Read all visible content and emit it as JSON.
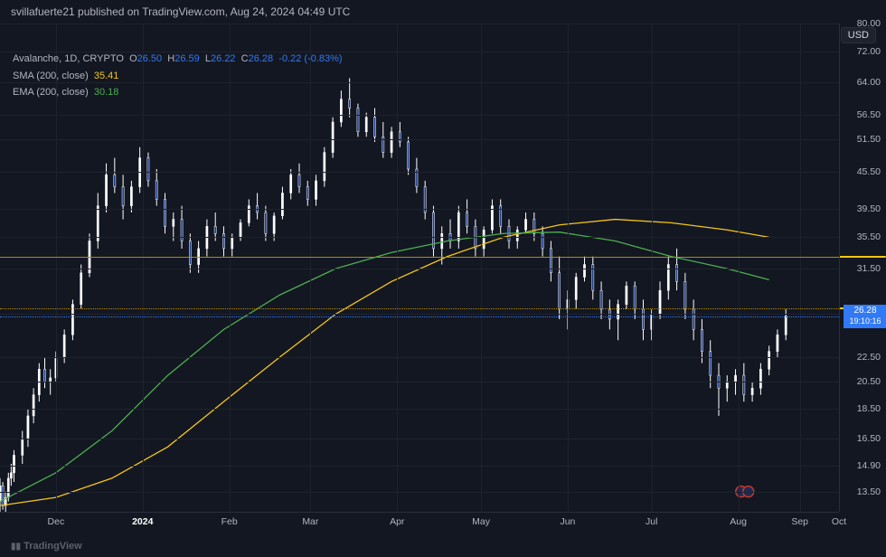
{
  "header": {
    "attribution": "svillafuerte21 published on TradingView.com, Aug 24, 2024 04:49 UTC"
  },
  "info": {
    "symbol": "Avalanche",
    "timeframe": "1D",
    "exchange": "CRYPTO",
    "o_label": "O",
    "o": "26.50",
    "h_label": "H",
    "h": "26.59",
    "l_label": "L",
    "l": "26.22",
    "c_label": "C",
    "c": "26.28",
    "change": "-0.22 (-0.83%)",
    "sma_label": "SMA (200, close)",
    "sma": "35.41",
    "ema_label": "EMA (200, close)",
    "ema": "30.18"
  },
  "currency_badge": "USD",
  "chart": {
    "type": "candlestick",
    "background_color": "#131722",
    "grid_color": "#1e222d",
    "y_scale": "log",
    "ylim": [
      12.5,
      80
    ],
    "yticks": [
      {
        "v": 80,
        "l": "80.00"
      },
      {
        "v": 72,
        "l": "72.00"
      },
      {
        "v": 64,
        "l": "64.00"
      },
      {
        "v": 56.5,
        "l": "56.50"
      },
      {
        "v": 51.5,
        "l": "51.50"
      },
      {
        "v": 45.5,
        "l": "45.50"
      },
      {
        "v": 39.5,
        "l": "39.50"
      },
      {
        "v": 35.5,
        "l": "35.50"
      },
      {
        "v": 31.5,
        "l": "31.50"
      },
      {
        "v": 26.5,
        "l": "26.50"
      },
      {
        "v": 22.5,
        "l": "22.50"
      },
      {
        "v": 20.5,
        "l": "20.50"
      },
      {
        "v": 18.5,
        "l": "18.50"
      },
      {
        "v": 16.5,
        "l": "16.50"
      },
      {
        "v": 14.9,
        "l": "14.90"
      },
      {
        "v": 13.5,
        "l": "13.50"
      }
    ],
    "xlim": [
      0,
      300
    ],
    "xticks": [
      {
        "i": 20,
        "l": "Dec",
        "bold": false
      },
      {
        "i": 51,
        "l": "2024",
        "bold": true
      },
      {
        "i": 82,
        "l": "Feb",
        "bold": false
      },
      {
        "i": 111,
        "l": "Mar",
        "bold": false
      },
      {
        "i": 142,
        "l": "Apr",
        "bold": false
      },
      {
        "i": 172,
        "l": "May",
        "bold": false
      },
      {
        "i": 203,
        "l": "Jun",
        "bold": false
      },
      {
        "i": 233,
        "l": "Jul",
        "bold": false
      },
      {
        "i": 264,
        "l": "Aug",
        "bold": false
      },
      {
        "i": 286,
        "l": "Sep",
        "bold": false
      },
      {
        "i": 300,
        "l": "Oct",
        "bold": false
      }
    ],
    "hlines": [
      {
        "v": 33.01,
        "label": "33.01",
        "style": "solid",
        "color": "#b58b00"
      },
      {
        "v": 27.1,
        "label": "27.10",
        "style": "dotted",
        "color": "#b58b00"
      }
    ],
    "current_price": {
      "v": 26.28,
      "label": "26.28",
      "sublabel": "19:10:16",
      "color": "#3179f5"
    },
    "sma_tag": {
      "v": 35.41,
      "label": "35.41",
      "color": "#f5c518"
    },
    "ema_tag": {
      "v": 30.18,
      "label": "30.18",
      "color": "#4caf50"
    },
    "candle_color": "#ffffff",
    "body_color": "#1c3d8c",
    "sma_color": "#f5c518",
    "ema_color": "#4caf50",
    "sma_points": [
      {
        "i": 0,
        "v": 12.8
      },
      {
        "i": 20,
        "v": 13.2
      },
      {
        "i": 40,
        "v": 14.2
      },
      {
        "i": 60,
        "v": 16.0
      },
      {
        "i": 80,
        "v": 19.0
      },
      {
        "i": 100,
        "v": 22.5
      },
      {
        "i": 120,
        "v": 26.5
      },
      {
        "i": 140,
        "v": 30.0
      },
      {
        "i": 160,
        "v": 33.0
      },
      {
        "i": 180,
        "v": 35.5
      },
      {
        "i": 200,
        "v": 37.2
      },
      {
        "i": 220,
        "v": 38.0
      },
      {
        "i": 240,
        "v": 37.5
      },
      {
        "i": 260,
        "v": 36.5
      },
      {
        "i": 275,
        "v": 35.5
      }
    ],
    "ema_points": [
      {
        "i": 0,
        "v": 13.0
      },
      {
        "i": 20,
        "v": 14.5
      },
      {
        "i": 40,
        "v": 17.0
      },
      {
        "i": 60,
        "v": 21.0
      },
      {
        "i": 80,
        "v": 25.0
      },
      {
        "i": 100,
        "v": 28.5
      },
      {
        "i": 120,
        "v": 31.5
      },
      {
        "i": 140,
        "v": 33.5
      },
      {
        "i": 160,
        "v": 35.0
      },
      {
        "i": 180,
        "v": 36.0
      },
      {
        "i": 200,
        "v": 36.2
      },
      {
        "i": 220,
        "v": 35.0
      },
      {
        "i": 240,
        "v": 33.0
      },
      {
        "i": 260,
        "v": 31.5
      },
      {
        "i": 275,
        "v": 30.2
      }
    ],
    "candles": [
      {
        "i": 0,
        "o": 13.0,
        "h": 14.2,
        "l": 12.5,
        "c": 13.8
      },
      {
        "i": 1,
        "o": 13.8,
        "h": 14.0,
        "l": 12.6,
        "c": 12.8
      },
      {
        "i": 2,
        "o": 12.8,
        "h": 13.5,
        "l": 12.5,
        "c": 13.2
      },
      {
        "i": 3,
        "o": 13.2,
        "h": 14.5,
        "l": 13.0,
        "c": 14.2
      },
      {
        "i": 4,
        "o": 14.2,
        "h": 15.0,
        "l": 13.8,
        "c": 14.5
      },
      {
        "i": 5,
        "o": 14.5,
        "h": 15.8,
        "l": 14.0,
        "c": 15.5
      },
      {
        "i": 8,
        "o": 15.5,
        "h": 17.0,
        "l": 15.0,
        "c": 16.5
      },
      {
        "i": 10,
        "o": 16.5,
        "h": 18.5,
        "l": 16.0,
        "c": 18.0
      },
      {
        "i": 12,
        "o": 18.0,
        "h": 20.0,
        "l": 17.5,
        "c": 19.5
      },
      {
        "i": 14,
        "o": 19.5,
        "h": 22.0,
        "l": 19.0,
        "c": 21.5
      },
      {
        "i": 16,
        "o": 21.5,
        "h": 22.5,
        "l": 20.0,
        "c": 20.5
      },
      {
        "i": 18,
        "o": 20.5,
        "h": 21.5,
        "l": 19.5,
        "c": 20.8
      },
      {
        "i": 20,
        "o": 20.8,
        "h": 23.0,
        "l": 20.5,
        "c": 22.5
      },
      {
        "i": 23,
        "o": 22.5,
        "h": 25.0,
        "l": 22.0,
        "c": 24.5
      },
      {
        "i": 26,
        "o": 24.5,
        "h": 28.0,
        "l": 24.0,
        "c": 27.5
      },
      {
        "i": 29,
        "o": 27.5,
        "h": 32.0,
        "l": 27.0,
        "c": 31.0
      },
      {
        "i": 32,
        "o": 31.0,
        "h": 36.0,
        "l": 30.5,
        "c": 35.0
      },
      {
        "i": 35,
        "o": 35.0,
        "h": 42.0,
        "l": 34.0,
        "c": 40.0
      },
      {
        "i": 38,
        "o": 40.0,
        "h": 47.0,
        "l": 39.0,
        "c": 45.0
      },
      {
        "i": 41,
        "o": 45.0,
        "h": 48.0,
        "l": 42.0,
        "c": 43.0
      },
      {
        "i": 44,
        "o": 43.0,
        "h": 45.0,
        "l": 38.0,
        "c": 40.0
      },
      {
        "i": 47,
        "o": 40.0,
        "h": 44.0,
        "l": 39.0,
        "c": 43.0
      },
      {
        "i": 50,
        "o": 43.0,
        "h": 50.0,
        "l": 42.0,
        "c": 48.0
      },
      {
        "i": 53,
        "o": 48.0,
        "h": 49.0,
        "l": 43.0,
        "c": 44.0
      },
      {
        "i": 56,
        "o": 44.0,
        "h": 46.0,
        "l": 40.0,
        "c": 41.0
      },
      {
        "i": 59,
        "o": 41.0,
        "h": 42.0,
        "l": 36.0,
        "c": 37.0
      },
      {
        "i": 62,
        "o": 37.0,
        "h": 39.0,
        "l": 35.0,
        "c": 38.0
      },
      {
        "i": 65,
        "o": 38.0,
        "h": 40.0,
        "l": 34.0,
        "c": 35.0
      },
      {
        "i": 68,
        "o": 35.0,
        "h": 36.0,
        "l": 31.0,
        "c": 32.0
      },
      {
        "i": 71,
        "o": 32.0,
        "h": 35.0,
        "l": 31.0,
        "c": 34.0
      },
      {
        "i": 74,
        "o": 34.0,
        "h": 38.0,
        "l": 33.0,
        "c": 37.0
      },
      {
        "i": 77,
        "o": 37.0,
        "h": 39.0,
        "l": 35.0,
        "c": 36.0
      },
      {
        "i": 80,
        "o": 36.0,
        "h": 37.0,
        "l": 33.0,
        "c": 34.0
      },
      {
        "i": 83,
        "o": 34.0,
        "h": 36.0,
        "l": 33.0,
        "c": 35.5
      },
      {
        "i": 86,
        "o": 35.5,
        "h": 38.0,
        "l": 35.0,
        "c": 37.5
      },
      {
        "i": 89,
        "o": 37.5,
        "h": 41.0,
        "l": 37.0,
        "c": 40.0
      },
      {
        "i": 92,
        "o": 40.0,
        "h": 42.0,
        "l": 38.0,
        "c": 39.0
      },
      {
        "i": 95,
        "o": 39.0,
        "h": 40.0,
        "l": 35.0,
        "c": 36.0
      },
      {
        "i": 98,
        "o": 36.0,
        "h": 39.0,
        "l": 35.0,
        "c": 38.5
      },
      {
        "i": 101,
        "o": 38.5,
        "h": 43.0,
        "l": 38.0,
        "c": 42.0
      },
      {
        "i": 104,
        "o": 42.0,
        "h": 46.0,
        "l": 41.0,
        "c": 45.0
      },
      {
        "i": 107,
        "o": 45.0,
        "h": 47.0,
        "l": 42.0,
        "c": 43.0
      },
      {
        "i": 110,
        "o": 43.0,
        "h": 44.0,
        "l": 40.0,
        "c": 41.0
      },
      {
        "i": 113,
        "o": 41.0,
        "h": 45.0,
        "l": 40.0,
        "c": 44.0
      },
      {
        "i": 116,
        "o": 44.0,
        "h": 50.0,
        "l": 43.0,
        "c": 49.0
      },
      {
        "i": 119,
        "o": 49.0,
        "h": 56.0,
        "l": 48.0,
        "c": 55.0
      },
      {
        "i": 122,
        "o": 55.0,
        "h": 62.0,
        "l": 54.0,
        "c": 60.0
      },
      {
        "i": 125,
        "o": 60.0,
        "h": 65.0,
        "l": 56.0,
        "c": 58.0
      },
      {
        "i": 128,
        "o": 58.0,
        "h": 59.0,
        "l": 52.0,
        "c": 53.0
      },
      {
        "i": 131,
        "o": 53.0,
        "h": 57.0,
        "l": 52.0,
        "c": 56.0
      },
      {
        "i": 134,
        "o": 56.0,
        "h": 58.0,
        "l": 51.0,
        "c": 52.0
      },
      {
        "i": 137,
        "o": 52.0,
        "h": 55.0,
        "l": 48.0,
        "c": 49.0
      },
      {
        "i": 140,
        "o": 49.0,
        "h": 54.0,
        "l": 48.0,
        "c": 53.0
      },
      {
        "i": 143,
        "o": 53.0,
        "h": 55.0,
        "l": 50.0,
        "c": 51.0
      },
      {
        "i": 146,
        "o": 51.0,
        "h": 52.0,
        "l": 45.0,
        "c": 46.0
      },
      {
        "i": 149,
        "o": 46.0,
        "h": 48.0,
        "l": 42.0,
        "c": 43.0
      },
      {
        "i": 152,
        "o": 43.0,
        "h": 44.0,
        "l": 38.0,
        "c": 39.0
      },
      {
        "i": 155,
        "o": 39.0,
        "h": 40.0,
        "l": 33.0,
        "c": 34.0
      },
      {
        "i": 158,
        "o": 34.0,
        "h": 37.0,
        "l": 32.0,
        "c": 36.0
      },
      {
        "i": 161,
        "o": 36.0,
        "h": 38.0,
        "l": 34.0,
        "c": 35.0
      },
      {
        "i": 164,
        "o": 35.0,
        "h": 40.0,
        "l": 34.0,
        "c": 39.0
      },
      {
        "i": 167,
        "o": 39.0,
        "h": 41.0,
        "l": 36.0,
        "c": 37.0
      },
      {
        "i": 170,
        "o": 37.0,
        "h": 38.0,
        "l": 33.0,
        "c": 34.0
      },
      {
        "i": 173,
        "o": 34.0,
        "h": 37.0,
        "l": 33.0,
        "c": 36.5
      },
      {
        "i": 176,
        "o": 36.5,
        "h": 41.0,
        "l": 36.0,
        "c": 40.0
      },
      {
        "i": 179,
        "o": 40.0,
        "h": 41.0,
        "l": 36.0,
        "c": 37.0
      },
      {
        "i": 182,
        "o": 37.0,
        "h": 38.0,
        "l": 34.0,
        "c": 35.0
      },
      {
        "i": 185,
        "o": 35.0,
        "h": 37.0,
        "l": 34.0,
        "c": 36.5
      },
      {
        "i": 188,
        "o": 36.5,
        "h": 39.0,
        "l": 36.0,
        "c": 38.0
      },
      {
        "i": 191,
        "o": 38.0,
        "h": 39.0,
        "l": 35.0,
        "c": 36.0
      },
      {
        "i": 194,
        "o": 36.0,
        "h": 37.0,
        "l": 33.0,
        "c": 34.0
      },
      {
        "i": 197,
        "o": 34.0,
        "h": 35.0,
        "l": 30.0,
        "c": 31.0
      },
      {
        "i": 200,
        "o": 31.0,
        "h": 33.0,
        "l": 26.0,
        "c": 27.0
      },
      {
        "i": 203,
        "o": 27.0,
        "h": 29.0,
        "l": 25.0,
        "c": 28.0
      },
      {
        "i": 206,
        "o": 28.0,
        "h": 31.0,
        "l": 27.0,
        "c": 30.5
      },
      {
        "i": 209,
        "o": 30.5,
        "h": 33.0,
        "l": 30.0,
        "c": 32.0
      },
      {
        "i": 212,
        "o": 32.0,
        "h": 33.0,
        "l": 28.0,
        "c": 29.0
      },
      {
        "i": 215,
        "o": 29.0,
        "h": 30.0,
        "l": 26.0,
        "c": 27.0
      },
      {
        "i": 218,
        "o": 27.0,
        "h": 28.0,
        "l": 25.0,
        "c": 26.0
      },
      {
        "i": 221,
        "o": 26.0,
        "h": 28.0,
        "l": 24.0,
        "c": 27.5
      },
      {
        "i": 224,
        "o": 27.5,
        "h": 30.0,
        "l": 27.0,
        "c": 29.5
      },
      {
        "i": 227,
        "o": 29.5,
        "h": 30.0,
        "l": 26.0,
        "c": 27.0
      },
      {
        "i": 230,
        "o": 27.0,
        "h": 28.0,
        "l": 24.0,
        "c": 25.0
      },
      {
        "i": 233,
        "o": 25.0,
        "h": 27.0,
        "l": 24.0,
        "c": 26.5
      },
      {
        "i": 236,
        "o": 26.5,
        "h": 30.0,
        "l": 26.0,
        "c": 29.0
      },
      {
        "i": 239,
        "o": 29.0,
        "h": 33.0,
        "l": 28.0,
        "c": 32.0
      },
      {
        "i": 242,
        "o": 32.0,
        "h": 34.0,
        "l": 29.0,
        "c": 30.0
      },
      {
        "i": 245,
        "o": 30.0,
        "h": 31.0,
        "l": 26.0,
        "c": 27.0
      },
      {
        "i": 248,
        "o": 27.0,
        "h": 28.0,
        "l": 24.0,
        "c": 25.0
      },
      {
        "i": 251,
        "o": 25.0,
        "h": 26.0,
        "l": 22.0,
        "c": 23.0
      },
      {
        "i": 254,
        "o": 23.0,
        "h": 24.0,
        "l": 20.0,
        "c": 21.0
      },
      {
        "i": 257,
        "o": 21.0,
        "h": 22.0,
        "l": 18.0,
        "c": 20.0
      },
      {
        "i": 260,
        "o": 20.0,
        "h": 21.0,
        "l": 19.0,
        "c": 20.5
      },
      {
        "i": 263,
        "o": 20.5,
        "h": 21.5,
        "l": 19.5,
        "c": 21.0
      },
      {
        "i": 266,
        "o": 21.0,
        "h": 22.0,
        "l": 19.0,
        "c": 19.5
      },
      {
        "i": 269,
        "o": 19.5,
        "h": 20.5,
        "l": 19.0,
        "c": 20.0
      },
      {
        "i": 272,
        "o": 20.0,
        "h": 22.0,
        "l": 19.5,
        "c": 21.5
      },
      {
        "i": 275,
        "o": 21.5,
        "h": 23.5,
        "l": 21.0,
        "c": 23.0
      },
      {
        "i": 278,
        "o": 23.0,
        "h": 25.0,
        "l": 22.5,
        "c": 24.5
      },
      {
        "i": 281,
        "o": 24.5,
        "h": 27.0,
        "l": 24.0,
        "c": 26.3
      }
    ]
  },
  "watermark": "TradingView",
  "flag_position": {
    "i": 265,
    "v": 13.5
  }
}
